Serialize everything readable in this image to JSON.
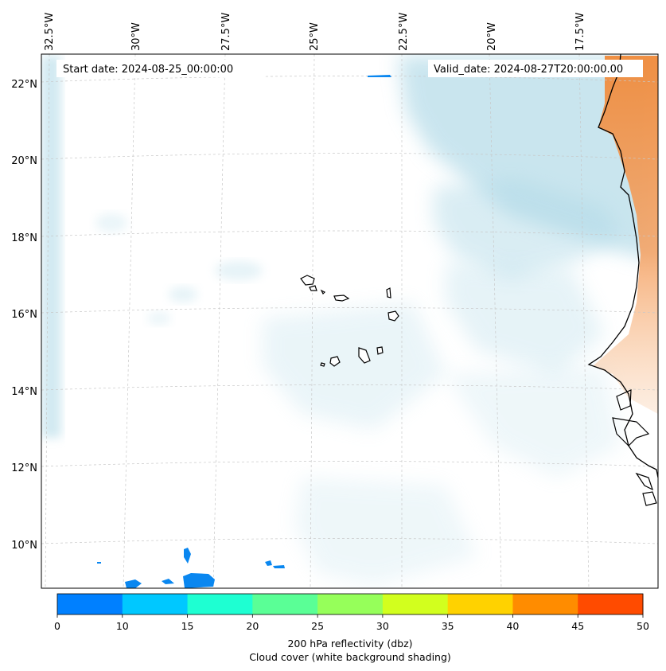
{
  "map": {
    "start_date": "Start date: 2024-08-25_00:00:00",
    "valid_date": "Valid_date: 2024-08-27T20:00:00.00",
    "lon_labels": [
      "32.5°W",
      "30°W",
      "27.5°W",
      "25°W",
      "22.5°W",
      "20°W",
      "17.5°W"
    ],
    "lat_labels": [
      "22°N",
      "20°N",
      "18°N",
      "16°N",
      "14°N",
      "12°N",
      "10°N"
    ],
    "colors": {
      "cloud": "#add8e6",
      "land_fill": "#ffffff",
      "coast": "#000000",
      "hot": "#f08a3a"
    }
  },
  "colorbar": {
    "ticks": [
      "0",
      "10",
      "15",
      "20",
      "25",
      "30",
      "35",
      "40",
      "45",
      "50"
    ],
    "colors": [
      "#0080ff",
      "#00c8ff",
      "#1effd2",
      "#5aff96",
      "#96ff5a",
      "#d2ff1e",
      "#ffd200",
      "#ff8c00",
      "#ff4b00"
    ],
    "label": "200 hPa reflectivity (dbz)",
    "sublabel": "Cloud cover (white background shading)"
  }
}
